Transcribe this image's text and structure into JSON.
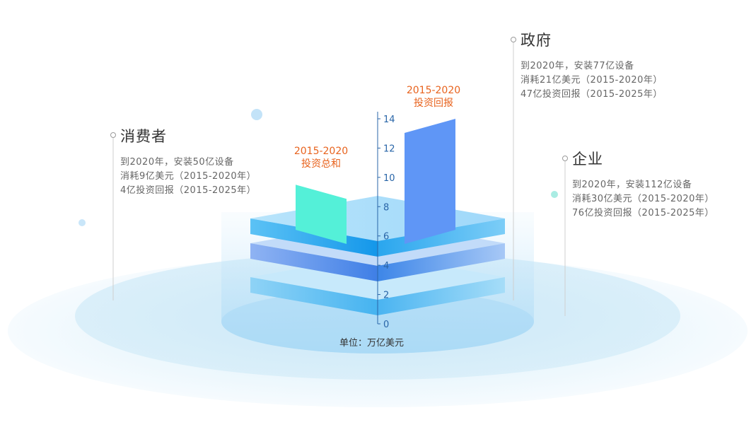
{
  "colors": {
    "bar_1": "#54f0d8",
    "bar_2": "#5f96f6",
    "axis": "#2a66a8",
    "label_accent": "#e8631e"
  },
  "callouts": {
    "consumer": {
      "title": "消费者",
      "lines": [
        "到2020年，安装50亿设备",
        "消耗9亿美元（2015-2020年）",
        "4亿投资回报（2015-2025年）"
      ]
    },
    "government": {
      "title": "政府",
      "lines": [
        "到2020年，安装77亿设备",
        "消耗21亿美元（2015-2020年）",
        "47亿投资回报（2015-2025年）"
      ]
    },
    "enterprise": {
      "title": "企业",
      "lines": [
        "到2020年，安装112亿设备",
        "消耗30亿美元（2015-2020年）",
        "76亿投资回报（2015-2025年）"
      ]
    }
  },
  "chart_data": {
    "type": "bar",
    "categories": [
      "2015-2020 投资总和",
      "2015-2020 投资回报"
    ],
    "category_labels": [
      {
        "line1": "2015-2020",
        "line2": "投资总和"
      },
      {
        "line1": "2015-2020",
        "line2": "投资回报"
      }
    ],
    "values": [
      9.5,
      14.0
    ],
    "yticks": [
      "0",
      "2",
      "4",
      "6",
      "8",
      "10",
      "12",
      "14"
    ],
    "ylim": [
      0,
      14
    ],
    "unit": "单位：万亿美元",
    "grid": false,
    "legend": "none"
  }
}
